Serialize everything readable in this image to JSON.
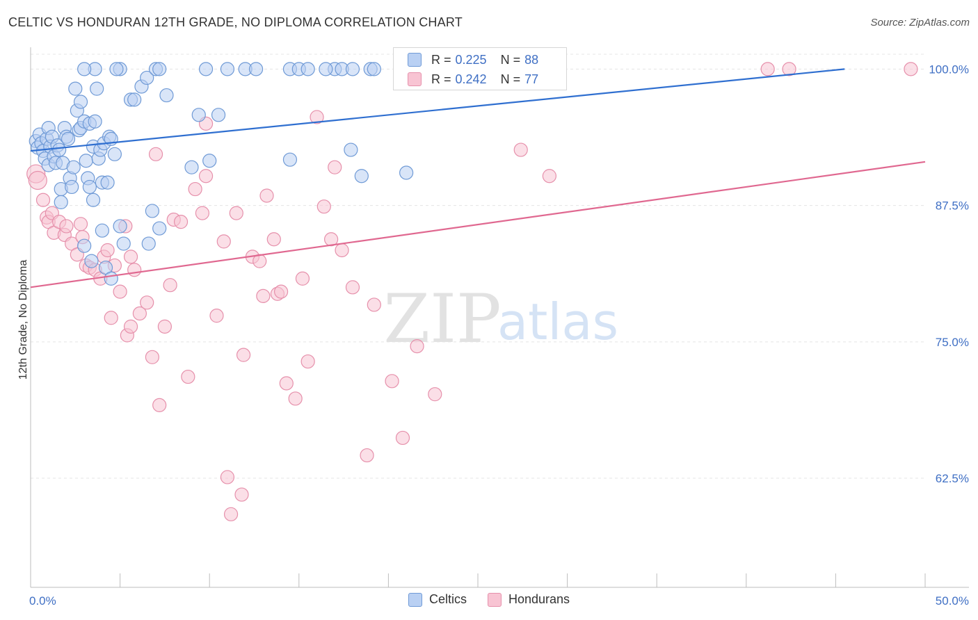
{
  "title": "CELTIC VS HONDURAN 12TH GRADE, NO DIPLOMA CORRELATION CHART",
  "source": "Source: ZipAtlas.com",
  "watermark": {
    "zip": "ZIP",
    "atlas": "atlas"
  },
  "stats": [
    {
      "r_label": "R =",
      "r_value": "0.225",
      "n_label": "N =",
      "n_value": "88"
    },
    {
      "r_label": "R =",
      "r_value": "0.242",
      "n_label": "N =",
      "n_value": "77"
    }
  ],
  "legend": [
    {
      "label": "Celtics"
    },
    {
      "label": "Hondurans"
    }
  ],
  "colors": {
    "celtics_fill": "#b9d0f3",
    "celtics_stroke": "#6f9ad6",
    "celtics_line": "#2f6fd0",
    "hondurans_fill": "#f8c4d3",
    "hondurans_stroke": "#e690ab",
    "hondurans_line": "#e06890",
    "tick_label": "#3f6fc4",
    "grid": "#e4e4e4"
  },
  "chart_data": {
    "type": "scatter",
    "title": "CELTIC VS HONDURAN 12TH GRADE, NO DIPLOMA CORRELATION CHART",
    "xlabel": "",
    "ylabel": "12th Grade, No Diploma",
    "xlim": [
      0,
      50
    ],
    "ylim": [
      52.5,
      102
    ],
    "x_tick_labels": [
      {
        "value": 0,
        "label": "0.0%"
      },
      {
        "value": 50,
        "label": "50.0%"
      }
    ],
    "x_minor_ticks": [
      5,
      10,
      15,
      20,
      25,
      30,
      35,
      40,
      45
    ],
    "y_ticks": [
      {
        "value": 100,
        "label": "100.0%"
      },
      {
        "value": 87.5,
        "label": "87.5%"
      },
      {
        "value": 75,
        "label": "75.0%"
      },
      {
        "value": 62.5,
        "label": "62.5%"
      }
    ],
    "grid": true,
    "legend_position": "bottom-center",
    "series": [
      {
        "name": "Celtics",
        "R": 0.225,
        "N": 88,
        "trend": {
          "x": [
            0,
            45.5
          ],
          "y": [
            92.5,
            100.0
          ]
        },
        "points": [
          [
            0.3,
            93.4
          ],
          [
            0.4,
            92.8
          ],
          [
            0.5,
            94.0
          ],
          [
            0.6,
            93.2
          ],
          [
            0.7,
            92.5
          ],
          [
            0.8,
            91.8
          ],
          [
            0.9,
            93.6
          ],
          [
            1.0,
            94.6
          ],
          [
            1.0,
            91.2
          ],
          [
            1.1,
            92.9
          ],
          [
            1.2,
            93.8
          ],
          [
            1.3,
            92.0
          ],
          [
            1.4,
            91.4
          ],
          [
            1.5,
            93.0
          ],
          [
            1.6,
            92.6
          ],
          [
            1.7,
            89.0
          ],
          [
            1.7,
            87.8
          ],
          [
            1.8,
            91.4
          ],
          [
            1.9,
            94.6
          ],
          [
            2.0,
            93.8
          ],
          [
            2.1,
            93.6
          ],
          [
            2.2,
            90.0
          ],
          [
            2.3,
            89.2
          ],
          [
            2.4,
            91.0
          ],
          [
            2.5,
            98.2
          ],
          [
            2.6,
            96.2
          ],
          [
            2.7,
            94.4
          ],
          [
            2.8,
            94.6
          ],
          [
            2.8,
            97.0
          ],
          [
            3.0,
            95.2
          ],
          [
            3.1,
            91.6
          ],
          [
            3.2,
            90.0
          ],
          [
            3.3,
            89.2
          ],
          [
            3.3,
            95.0
          ],
          [
            3.5,
            88.0
          ],
          [
            3.5,
            92.9
          ],
          [
            3.6,
            95.2
          ],
          [
            3.7,
            98.2
          ],
          [
            3.8,
            91.8
          ],
          [
            3.9,
            92.6
          ],
          [
            4.0,
            89.6
          ],
          [
            4.1,
            93.2
          ],
          [
            4.3,
            89.6
          ],
          [
            4.4,
            93.8
          ],
          [
            4.5,
            93.6
          ],
          [
            4.7,
            92.2
          ],
          [
            3.0,
            83.8
          ],
          [
            3.4,
            82.4
          ],
          [
            4.0,
            85.2
          ],
          [
            4.2,
            81.8
          ],
          [
            4.5,
            80.8
          ],
          [
            5.0,
            85.6
          ],
          [
            5.2,
            84.0
          ],
          [
            5.0,
            100.0
          ],
          [
            4.8,
            100.0
          ],
          [
            3.6,
            100.0
          ],
          [
            3.0,
            100.0
          ],
          [
            5.6,
            97.2
          ],
          [
            5.8,
            97.2
          ],
          [
            6.2,
            98.4
          ],
          [
            6.5,
            99.2
          ],
          [
            7.0,
            100.0
          ],
          [
            7.2,
            100.0
          ],
          [
            7.6,
            97.6
          ],
          [
            7.2,
            85.4
          ],
          [
            6.8,
            87.0
          ],
          [
            6.6,
            84.0
          ],
          [
            9.0,
            91.0
          ],
          [
            9.4,
            95.8
          ],
          [
            10.0,
            91.6
          ],
          [
            10.5,
            95.8
          ],
          [
            11.0,
            100.0
          ],
          [
            9.8,
            100.0
          ],
          [
            12.0,
            100.0
          ],
          [
            12.6,
            100.0
          ],
          [
            14.5,
            100.0
          ],
          [
            15.0,
            100.0
          ],
          [
            17.0,
            100.0
          ],
          [
            16.5,
            100.0
          ],
          [
            17.4,
            100.0
          ],
          [
            18.0,
            100.0
          ],
          [
            19.0,
            100.0
          ],
          [
            15.5,
            100.0
          ],
          [
            19.2,
            100.0
          ],
          [
            17.9,
            92.6
          ],
          [
            14.5,
            91.7
          ],
          [
            18.5,
            90.2
          ],
          [
            21.0,
            90.5
          ]
        ]
      },
      {
        "name": "Hondurans",
        "R": 0.242,
        "N": 77,
        "trend": {
          "x": [
            0,
            50
          ],
          "y": [
            80.0,
            91.5
          ]
        },
        "points": [
          [
            0.3,
            90.4
          ],
          [
            0.4,
            89.8
          ],
          [
            0.7,
            88.0
          ],
          [
            0.9,
            86.4
          ],
          [
            1.0,
            86.0
          ],
          [
            1.2,
            86.8
          ],
          [
            1.3,
            85.0
          ],
          [
            1.6,
            86.0
          ],
          [
            1.9,
            84.8
          ],
          [
            2.0,
            85.6
          ],
          [
            2.3,
            84.0
          ],
          [
            2.6,
            83.0
          ],
          [
            2.8,
            85.8
          ],
          [
            2.9,
            84.6
          ],
          [
            3.1,
            82.0
          ],
          [
            3.3,
            81.8
          ],
          [
            3.6,
            81.6
          ],
          [
            3.9,
            80.8
          ],
          [
            4.1,
            82.8
          ],
          [
            4.3,
            83.4
          ],
          [
            4.5,
            77.2
          ],
          [
            4.7,
            82.0
          ],
          [
            5.0,
            79.6
          ],
          [
            5.3,
            85.6
          ],
          [
            5.6,
            82.8
          ],
          [
            5.8,
            81.6
          ],
          [
            5.4,
            75.6
          ],
          [
            5.6,
            76.4
          ],
          [
            6.1,
            77.6
          ],
          [
            6.5,
            78.6
          ],
          [
            6.8,
            73.6
          ],
          [
            7.0,
            92.2
          ],
          [
            7.2,
            69.2
          ],
          [
            7.5,
            76.4
          ],
          [
            7.8,
            80.2
          ],
          [
            8.0,
            86.2
          ],
          [
            8.4,
            86.0
          ],
          [
            8.8,
            71.8
          ],
          [
            9.2,
            89.0
          ],
          [
            9.6,
            86.8
          ],
          [
            9.8,
            95.0
          ],
          [
            9.8,
            90.2
          ],
          [
            10.4,
            77.4
          ],
          [
            10.8,
            84.2
          ],
          [
            11.0,
            62.6
          ],
          [
            11.5,
            86.8
          ],
          [
            11.8,
            61.0
          ],
          [
            11.2,
            59.2
          ],
          [
            11.9,
            73.8
          ],
          [
            12.4,
            82.8
          ],
          [
            12.8,
            82.4
          ],
          [
            13.0,
            79.2
          ],
          [
            13.2,
            88.4
          ],
          [
            13.6,
            84.4
          ],
          [
            13.8,
            79.4
          ],
          [
            14.0,
            79.6
          ],
          [
            14.3,
            71.2
          ],
          [
            14.8,
            69.8
          ],
          [
            15.2,
            80.8
          ],
          [
            15.5,
            73.2
          ],
          [
            16.0,
            95.6
          ],
          [
            16.4,
            87.4
          ],
          [
            16.8,
            84.4
          ],
          [
            17.0,
            91.0
          ],
          [
            17.4,
            83.4
          ],
          [
            18.0,
            80.0
          ],
          [
            18.8,
            64.6
          ],
          [
            19.2,
            78.4
          ],
          [
            20.2,
            71.4
          ],
          [
            20.8,
            66.2
          ],
          [
            21.6,
            74.6
          ],
          [
            22.6,
            70.2
          ],
          [
            27.4,
            92.6
          ],
          [
            29.0,
            90.2
          ],
          [
            41.2,
            100.0
          ],
          [
            42.4,
            100.0
          ],
          [
            49.2,
            100.0
          ]
        ]
      }
    ]
  }
}
